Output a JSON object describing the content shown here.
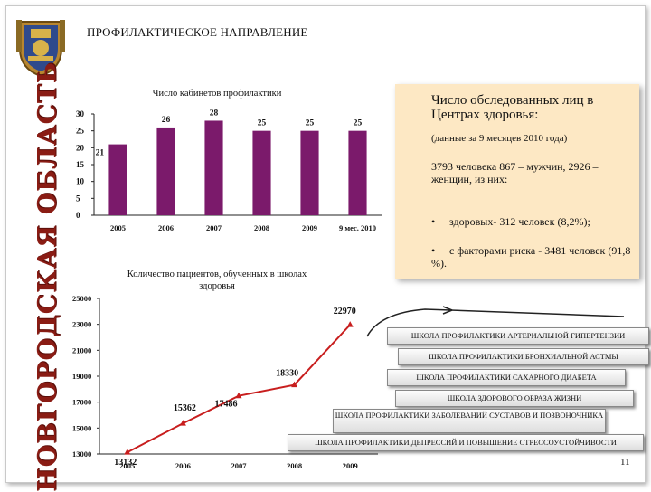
{
  "page": {
    "title": "ПРОФИЛАКТИЧЕСКОЕ НАПРАВЛЕНИЕ",
    "region": "НОВГОРОДСКАЯ ОБЛАСТЬ",
    "page_number": "11",
    "colors": {
      "region_text": "#8a1c14",
      "bars": "#7b1a6b",
      "line": "#c81e1e",
      "info_bg": "#fde8c4",
      "boxes_border": "#888888"
    }
  },
  "emblem": {
    "icon": "coat-of-arms-icon"
  },
  "chart_data": [
    {
      "type": "bar",
      "title": "Число кабинетов профилактики",
      "categories": [
        "2005",
        "2006",
        "2007",
        "2008",
        "2009",
        "9 мес. 2010"
      ],
      "values": [
        21,
        26,
        28,
        25,
        25,
        25
      ],
      "value_labels": [
        "21",
        "26",
        "28",
        "25",
        "25",
        "25"
      ],
      "yticks": [
        "0",
        "5",
        "10",
        "15",
        "20",
        "25",
        "30"
      ],
      "ylim": [
        0,
        30
      ],
      "grid": false,
      "legend": "none"
    },
    {
      "type": "line",
      "title": "Количество пациентов, обученных в школах здоровья",
      "categories": [
        "2005",
        "2006",
        "2007",
        "2008",
        "2009"
      ],
      "values": [
        13132,
        15362,
        17486,
        18330,
        22970
      ],
      "value_labels": [
        "13132",
        "15362",
        "17486",
        "18330",
        "22970"
      ],
      "yticks": [
        "13000",
        "15000",
        "17000",
        "19000",
        "21000",
        "23000",
        "25000"
      ],
      "ylim": [
        13000,
        25000
      ],
      "grid": false,
      "legend": "none"
    }
  ],
  "info": {
    "heading": "Число обследованных лиц в Центрах здоровья:",
    "subheading": "(данные за 9 месяцев 2010 года)",
    "total": "3793 человека 867 – мужчин, 2926 – женщин, из них:",
    "bullets": [
      {
        "marker": "•",
        "text": "здоровых- 312 человек (8,2%);"
      },
      {
        "marker": "•",
        "text": "с факторами риска - 3481 человек (91,8 %)."
      }
    ]
  },
  "schools": [
    "ШКОЛА ПРОФИЛАКТИКИ АРТЕРИАЛЬНОЙ ГИПЕРТЕНЗИИ",
    "ШКОЛА ПРОФИЛАКТИКИ БРОНХИАЛЬНОЙ АСТМЫ",
    "ШКОЛА ПРОФИЛАКТИКИ САХАРНОГО ДИАБЕТА",
    "ШКОЛА ЗДОРОВОГО ОБРАЗА ЖИЗНИ",
    "ШКОЛА ПРОФИЛАКТИКИ ЗАБОЛЕВАНИЙ СУСТАВОВ И ПОЗВОНОЧНИКА",
    "ШКОЛА ПРОФИЛАКТИКИ ДЕПРЕССИЙ И ПОВЫШЕНИЕ СТРЕССОУСТОЙЧИВОСТИ"
  ]
}
